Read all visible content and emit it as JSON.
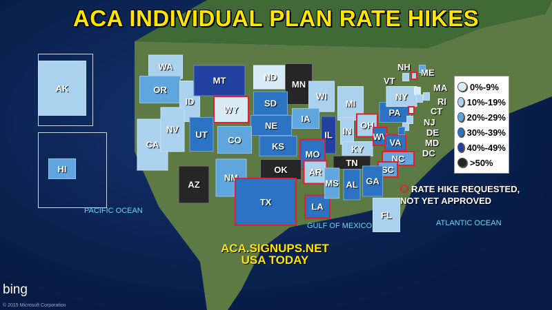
{
  "title": "ACA INDIVIDUAL PLAN RATE HIKES",
  "legend": {
    "tiers": [
      {
        "label": "0%-9%",
        "color": "#d8ecf8"
      },
      {
        "label": "10%-19%",
        "color": "#aad2ef"
      },
      {
        "label": "20%-29%",
        "color": "#5fa6de"
      },
      {
        "label": "30%-39%",
        "color": "#2c73c4"
      },
      {
        "label": "40%-49%",
        "color": "#23419f"
      },
      {
        "label": ">50%",
        "color": "#262626"
      }
    ],
    "requested_note_line1": "RATE HIKE REQUESTED,",
    "requested_note_line2": "NOT YET APPROVED",
    "requested_color": "#e0202a"
  },
  "states": [
    {
      "abbr": "WA",
      "tier": 1
    },
    {
      "abbr": "OR",
      "tier": 2
    },
    {
      "abbr": "ID",
      "tier": 1
    },
    {
      "abbr": "MT",
      "tier": 4
    },
    {
      "abbr": "ND",
      "tier": 0
    },
    {
      "abbr": "MN",
      "tier": 5
    },
    {
      "abbr": "WI",
      "tier": 1
    },
    {
      "abbr": "MI",
      "tier": 1
    },
    {
      "abbr": "WY",
      "tier": 0,
      "requested": true
    },
    {
      "abbr": "SD",
      "tier": 3
    },
    {
      "abbr": "NE",
      "tier": 3
    },
    {
      "abbr": "IA",
      "tier": 2
    },
    {
      "abbr": "IL",
      "tier": 4
    },
    {
      "abbr": "IN",
      "tier": 1
    },
    {
      "abbr": "OH",
      "tier": 1,
      "requested": true
    },
    {
      "abbr": "PA",
      "tier": 3
    },
    {
      "abbr": "NY",
      "tier": 1
    },
    {
      "abbr": "CA",
      "tier": 1
    },
    {
      "abbr": "NV",
      "tier": 1
    },
    {
      "abbr": "UT",
      "tier": 3
    },
    {
      "abbr": "CO",
      "tier": 2
    },
    {
      "abbr": "KS",
      "tier": 3
    },
    {
      "abbr": "MO",
      "tier": 3,
      "requested": true
    },
    {
      "abbr": "KY",
      "tier": 1
    },
    {
      "abbr": "WV",
      "tier": 3,
      "requested": true
    },
    {
      "abbr": "VA",
      "tier": 3,
      "requested": true
    },
    {
      "abbr": "NC",
      "tier": 2,
      "requested": true
    },
    {
      "abbr": "SC",
      "tier": 2,
      "requested": true
    },
    {
      "abbr": "TN",
      "tier": 5
    },
    {
      "abbr": "AZ",
      "tier": 5
    },
    {
      "abbr": "NM",
      "tier": 2
    },
    {
      "abbr": "OK",
      "tier": 5
    },
    {
      "abbr": "AR",
      "tier": 1,
      "requested": true
    },
    {
      "abbr": "TX",
      "tier": 3,
      "requested": true
    },
    {
      "abbr": "LA",
      "tier": 3,
      "requested": true
    },
    {
      "abbr": "MS",
      "tier": 2
    },
    {
      "abbr": "AL",
      "tier": 3
    },
    {
      "abbr": "GA",
      "tier": 3
    },
    {
      "abbr": "FL",
      "tier": 1
    },
    {
      "abbr": "AK",
      "tier": 1
    },
    {
      "abbr": "HI",
      "tier": 2
    }
  ],
  "callouts": [
    "VT",
    "NH",
    "ME",
    "MA",
    "RI",
    "CT",
    "NJ",
    "DE",
    "MD",
    "DC"
  ],
  "oceans": {
    "pacific": "PACIFIC OCEAN",
    "gulf": "GULF OF MEXICO",
    "atlantic": "ATLANTIC OCEAN"
  },
  "source_line1": "ACA.SIGNUPS.NET",
  "source_line2": "USA TODAY",
  "map_brand": "bing",
  "copyright": "© 2015 Microsoft Corporation"
}
